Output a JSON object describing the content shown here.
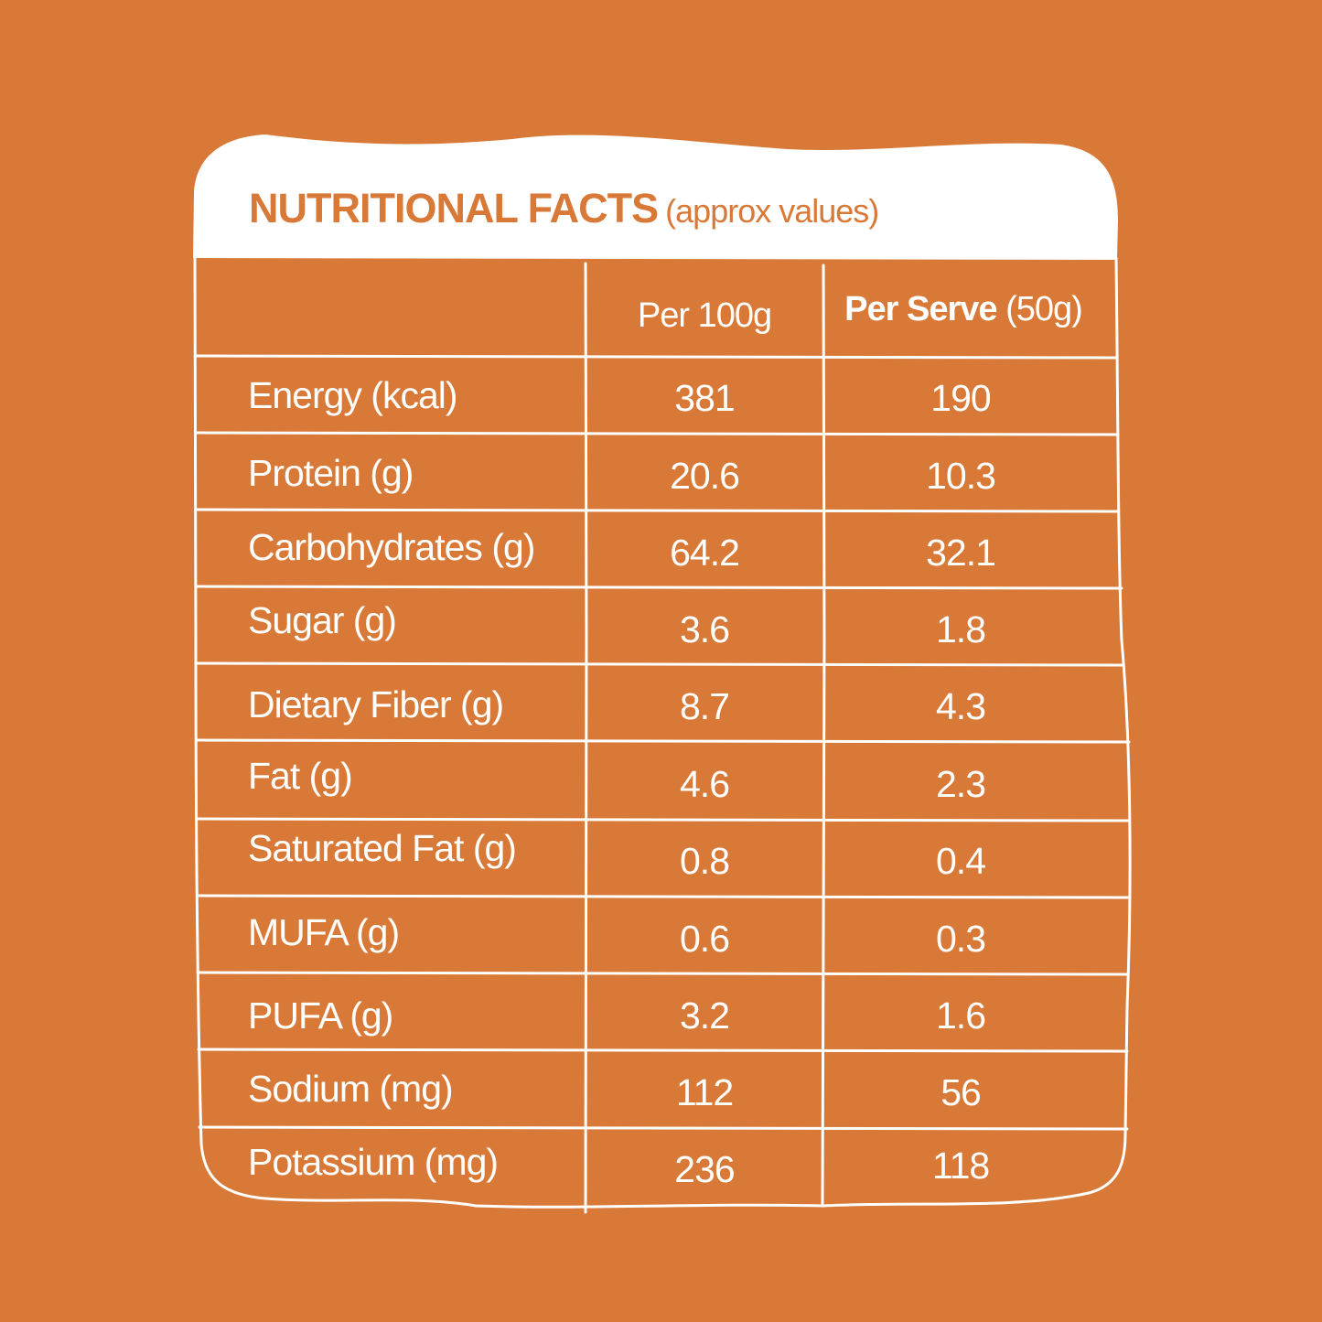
{
  "title": {
    "main": "NUTRITIONAL FACTS",
    "sub": "(approx values)"
  },
  "columns": {
    "per_100g": "Per 100g",
    "per_serve_bold": "Per Serve",
    "per_serve_qty": "(50g)"
  },
  "rows": [
    {
      "label": "Energy (kcal)",
      "per_100g": "381",
      "per_serve": "190"
    },
    {
      "label": "Protein (g)",
      "per_100g": "20.6",
      "per_serve": "10.3"
    },
    {
      "label": "Carbohydrates (g)",
      "per_100g": "64.2",
      "per_serve": "32.1"
    },
    {
      "label": "Sugar (g)",
      "per_100g": "3.6",
      "per_serve": "1.8"
    },
    {
      "label": "Dietary Fiber (g)",
      "per_100g": "8.7",
      "per_serve": "4.3"
    },
    {
      "label": "Fat (g)",
      "per_100g": "4.6",
      "per_serve": "2.3"
    },
    {
      "label": "Saturated Fat (g)",
      "per_100g": "0.8",
      "per_serve": "0.4"
    },
    {
      "label": "MUFA (g)",
      "per_100g": "0.6",
      "per_serve": "0.3"
    },
    {
      "label": "PUFA (g)",
      "per_100g": "3.2",
      "per_serve": "1.6"
    },
    {
      "label": "Sodium (mg)",
      "per_100g": "112",
      "per_serve": "56"
    },
    {
      "label": "Potassium  (mg)",
      "per_100g": "236",
      "per_serve": "118"
    }
  ],
  "colors": {
    "background": "#d97937",
    "card": "#ffffff",
    "title": "#d97937",
    "text": "#ffffff"
  }
}
